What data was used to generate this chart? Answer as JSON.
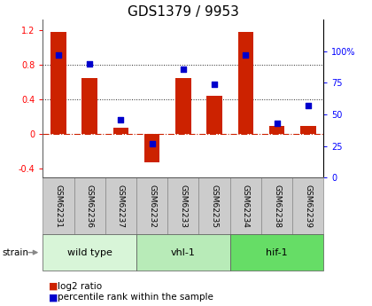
{
  "title": "GDS1379 / 9953",
  "samples": [
    "GSM62231",
    "GSM62236",
    "GSM62237",
    "GSM62232",
    "GSM62233",
    "GSM62235",
    "GSM62234",
    "GSM62238",
    "GSM62239"
  ],
  "log2_ratio": [
    1.18,
    0.65,
    0.07,
    -0.32,
    0.65,
    0.44,
    1.18,
    0.1,
    0.1
  ],
  "percentile_rank": [
    97,
    90,
    46,
    27,
    86,
    74,
    97,
    43,
    57
  ],
  "groups": [
    {
      "label": "wild type",
      "start": 0,
      "end": 3,
      "color": "#d8f5d8"
    },
    {
      "label": "vhl-1",
      "start": 3,
      "end": 6,
      "color": "#b8ebb8"
    },
    {
      "label": "hif-1",
      "start": 6,
      "end": 9,
      "color": "#66dd66"
    }
  ],
  "ylim_left": [
    -0.5,
    1.32
  ],
  "ylim_right": [
    0,
    125
  ],
  "yticks_left": [
    -0.4,
    0.0,
    0.4,
    0.8,
    1.2
  ],
  "yticks_right": [
    0,
    25,
    50,
    75,
    100
  ],
  "bar_color": "#cc2200",
  "dot_color": "#0000cc",
  "zero_line_color": "#cc2200",
  "grid_color": "#222222",
  "bg_color": "#ffffff",
  "title_fontsize": 11,
  "tick_fontsize": 7,
  "label_fontsize": 6.5,
  "group_fontsize": 8,
  "legend_fontsize": 7.5,
  "bar_width": 0.5,
  "sample_cell_color": "#cccccc",
  "sample_cell_edge": "#888888"
}
